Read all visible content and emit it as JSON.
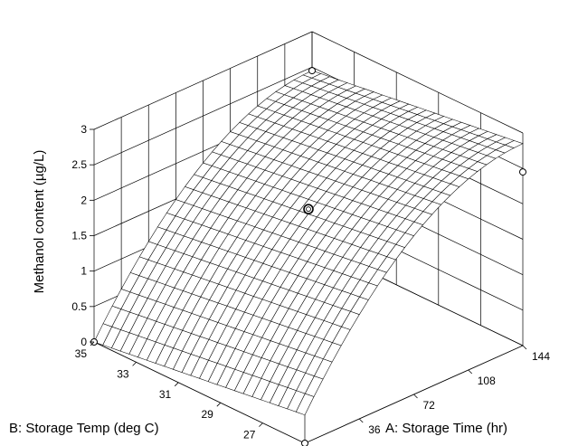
{
  "chart_data": {
    "type": "surface",
    "xlabel": "A: Storage Time (hr)",
    "ylabel": "B: Storage Temp (deg C)",
    "zlabel": "Methanol content (µg/L)",
    "x_ticks": [
      "36",
      "72",
      "108",
      "144"
    ],
    "y_ticks": [
      "27",
      "29",
      "31",
      "33",
      "35"
    ],
    "z_ticks": [
      "0",
      "0.5",
      "1",
      "1.5",
      "2",
      "2.5",
      "3"
    ],
    "xlim": [
      0,
      144
    ],
    "ylim": [
      25,
      35
    ],
    "zlim": [
      0,
      3
    ],
    "surface_function": "z = 2.45*(1-(1-x/144)^2) + 0.04*(35-y)",
    "design_points": [
      {
        "x": 0,
        "y": 35,
        "z": 0
      },
      {
        "x": 0,
        "y": 25,
        "z": 0
      },
      {
        "x": 144,
        "y": 35,
        "z": 2.45
      },
      {
        "x": 144,
        "y": 25,
        "z": 2.45
      },
      {
        "x": 72,
        "y": 30,
        "z": 1.9
      }
    ]
  }
}
